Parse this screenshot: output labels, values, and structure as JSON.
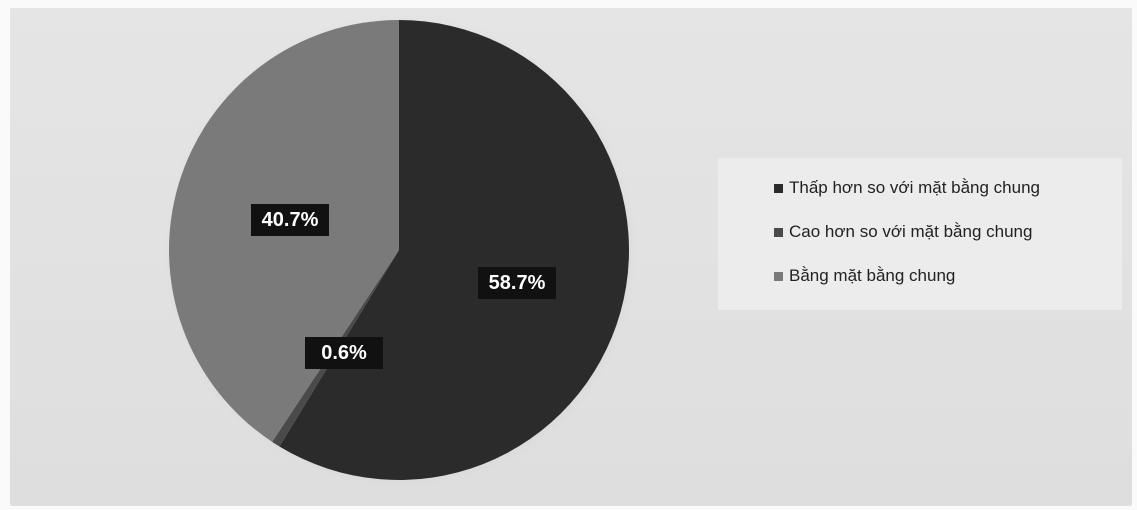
{
  "chart_data": {
    "type": "pie",
    "slices": [
      {
        "label": "Thấp hơn so với mặt bằng chung",
        "value": 58.7,
        "value_label": "58.7%",
        "color": "#2b2b2b"
      },
      {
        "label": "Cao hơn so với mặt bằng chung",
        "value": 0.6,
        "value_label": "0.6%",
        "color": "#4a4a4a"
      },
      {
        "label": "Bằng mặt bằng chung",
        "value": 40.7,
        "value_label": "40.7%",
        "color": "#7a7a7a"
      }
    ],
    "legend_position": "right",
    "start_angle_deg": 0,
    "direction": "clockwise"
  }
}
